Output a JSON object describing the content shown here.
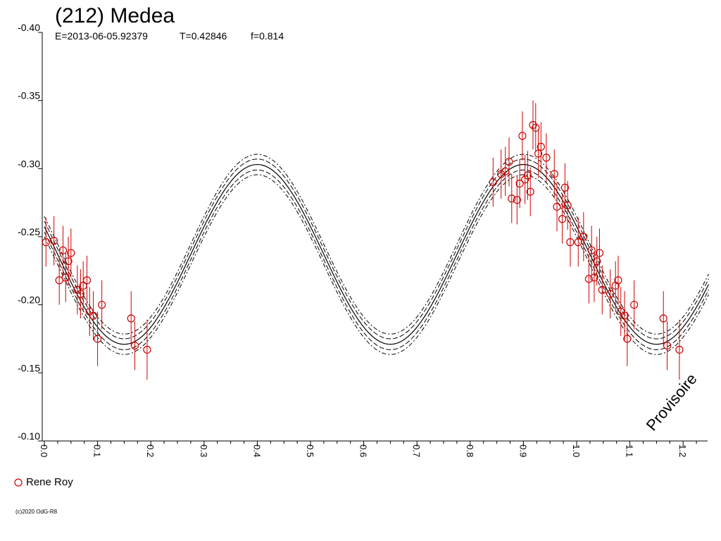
{
  "header": {
    "title": "(212) Medea",
    "epoch": "E=2013-06-05.92379",
    "period": "T=0.42846",
    "fourier": "f=0.814"
  },
  "legend": {
    "label": "Rene Roy"
  },
  "watermark": "Provisoire",
  "copyright": "(c)2020 OdG-R8",
  "chart_data": {
    "type": "scatter",
    "title": "(212) Medea",
    "xlabel": "",
    "ylabel": "",
    "xlim": [
      0.0,
      1.25
    ],
    "ylim": [
      -0.1,
      -0.4
    ],
    "x_ticks": [
      "0.0",
      "0.1",
      "0.2",
      "0.3",
      "0.4",
      "0.5",
      "0.6",
      "0.7",
      "0.8",
      "0.9",
      "1.0",
      "1.1",
      "1.2"
    ],
    "y_ticks": [
      "-0.40",
      "-0.35",
      "-0.30",
      "-0.25",
      "-0.20",
      "-0.15",
      "-0.10"
    ],
    "grid": false,
    "legend_position": "bottom-left",
    "colors": {
      "observations": "#cc0000",
      "model": "#000000"
    },
    "fit": {
      "name": "",
      "mean": -0.237,
      "amplitude": 0.066,
      "max_phase": 0.4,
      "period_cycles": 2,
      "band_offsets": [
        -0.004,
        0.004,
        -0.0075,
        0.0075
      ]
    },
    "series": [
      {
        "name": "Rene Roy",
        "x": [
          0.003,
          0.018,
          0.028,
          0.035,
          0.04,
          0.045,
          0.05,
          0.062,
          0.068,
          0.073,
          0.08,
          0.085,
          0.092,
          0.1,
          0.108,
          0.163,
          0.17,
          0.193
        ],
        "y": [
          -0.246,
          -0.247,
          -0.218,
          -0.24,
          -0.22,
          -0.232,
          -0.238,
          -0.211,
          -0.208,
          -0.214,
          -0.218,
          -0.195,
          -0.192,
          -0.175,
          -0.2,
          -0.19,
          -0.17,
          -0.167
        ],
        "err": [
          0.018,
          0.018,
          0.018,
          0.018,
          0.018,
          0.018,
          0.018,
          0.018,
          0.018,
          0.018,
          0.018,
          0.018,
          0.018,
          0.02,
          0.018,
          0.02,
          0.018,
          0.022
        ]
      },
      {
        "name": "Rene Roy",
        "x": [
          0.843,
          0.858,
          0.866,
          0.873,
          0.878,
          0.888,
          0.893,
          0.898,
          0.903,
          0.908,
          0.913,
          0.918,
          0.923,
          0.928,
          0.933,
          0.943,
          0.958,
          0.963,
          0.973,
          0.978,
          0.983,
          0.988,
          1.003,
          1.013,
          1.023,
          1.028,
          1.033,
          1.038,
          1.043,
          1.048,
          1.063,
          1.073,
          1.078,
          1.083,
          1.09,
          1.095,
          1.108,
          1.163,
          1.17,
          1.193
        ],
        "y": [
          -0.29,
          -0.296,
          -0.298,
          -0.305,
          -0.278,
          -0.277,
          -0.289,
          -0.324,
          -0.292,
          -0.295,
          -0.283,
          -0.332,
          -0.33,
          -0.311,
          -0.316,
          -0.308,
          -0.296,
          -0.272,
          -0.263,
          -0.286,
          -0.273,
          -0.246,
          -0.246,
          -0.25,
          -0.219,
          -0.24,
          -0.22,
          -0.232,
          -0.238,
          -0.211,
          -0.208,
          -0.214,
          -0.218,
          -0.195,
          -0.192,
          -0.175,
          -0.2,
          -0.19,
          -0.17,
          -0.167
        ],
        "err": [
          0.018,
          0.018,
          0.018,
          0.018,
          0.018,
          0.018,
          0.018,
          0.018,
          0.018,
          0.018,
          0.018,
          0.018,
          0.018,
          0.018,
          0.018,
          0.018,
          0.018,
          0.018,
          0.018,
          0.018,
          0.018,
          0.018,
          0.018,
          0.018,
          0.018,
          0.018,
          0.018,
          0.018,
          0.018,
          0.018,
          0.018,
          0.018,
          0.018,
          0.018,
          0.018,
          0.02,
          0.018,
          0.02,
          0.018,
          0.022
        ]
      }
    ]
  }
}
